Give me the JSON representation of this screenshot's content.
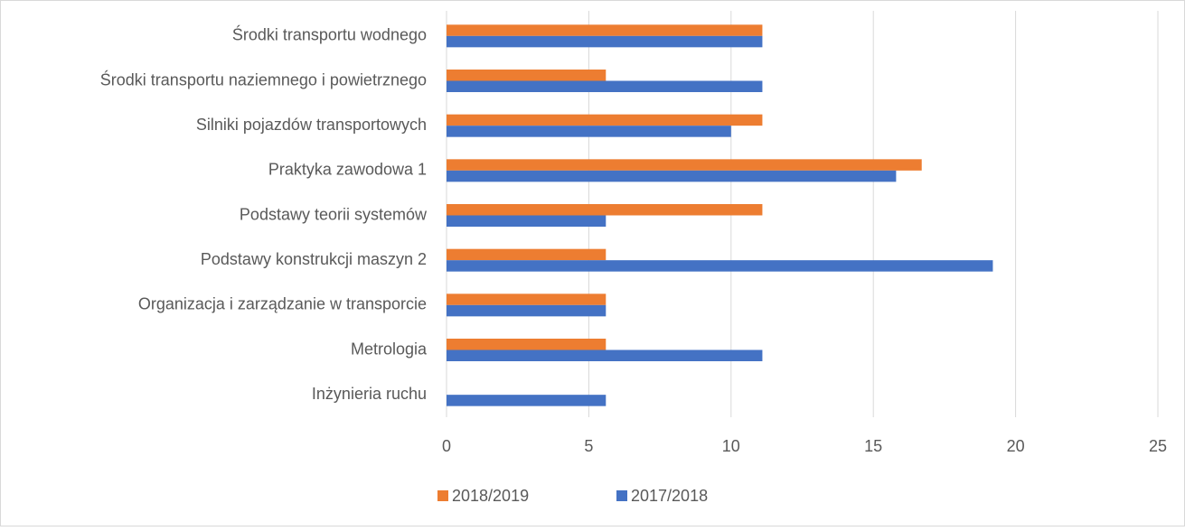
{
  "chart_data": {
    "type": "bar",
    "orientation": "horizontal",
    "categories": [
      "Środki transportu wodnego",
      "Środki transportu naziemnego i powietrznego",
      "Silniki pojazdów transportowych",
      "Praktyka zawodowa 1",
      "Podstawy teorii systemów",
      "Podstawy konstrukcji maszyn 2",
      "Organizacja i zarządzanie w transporcie",
      "Metrologia",
      "Inżynieria ruchu"
    ],
    "series": [
      {
        "name": "2018/2019",
        "color": "#ED7D31",
        "values": [
          11.1,
          5.6,
          11.1,
          16.7,
          11.1,
          5.6,
          5.6,
          5.6,
          0
        ]
      },
      {
        "name": "2017/2018",
        "color": "#4472C4",
        "values": [
          11.1,
          11.1,
          10,
          15.8,
          5.6,
          19.2,
          5.6,
          11.1,
          5.6
        ]
      }
    ],
    "xlim": [
      0,
      25
    ],
    "xticks": [
      0,
      5,
      10,
      15,
      20,
      25
    ],
    "grid": true,
    "legend": "bottom"
  }
}
